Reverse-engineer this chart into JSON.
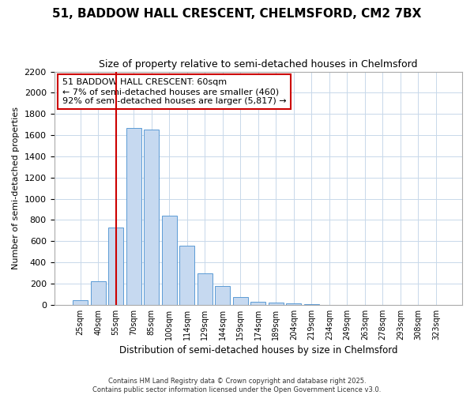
{
  "title": "51, BADDOW HALL CRESCENT, CHELMSFORD, CM2 7BX",
  "subtitle": "Size of property relative to semi-detached houses in Chelmsford",
  "xlabel": "Distribution of semi-detached houses by size in Chelmsford",
  "ylabel": "Number of semi-detached properties",
  "bar_labels": [
    "25sqm",
    "40sqm",
    "55sqm",
    "70sqm",
    "85sqm",
    "100sqm",
    "114sqm",
    "129sqm",
    "144sqm",
    "159sqm",
    "174sqm",
    "189sqm",
    "204sqm",
    "219sqm",
    "234sqm",
    "249sqm",
    "263sqm",
    "278sqm",
    "293sqm",
    "308sqm",
    "323sqm"
  ],
  "bar_values": [
    40,
    220,
    730,
    1670,
    1650,
    840,
    560,
    300,
    180,
    70,
    30,
    20,
    10,
    5,
    2,
    1,
    0,
    0,
    0,
    0,
    0
  ],
  "bar_color": "#c6d9f0",
  "bar_edge_color": "#5b9bd5",
  "ylim": [
    0,
    2200
  ],
  "yticks": [
    0,
    200,
    400,
    600,
    800,
    1000,
    1200,
    1400,
    1600,
    1800,
    2000,
    2200
  ],
  "vline_x": 2,
  "vline_color": "#cc0000",
  "annotation_title": "51 BADDOW HALL CRESCENT: 60sqm",
  "annotation_line1": "← 7% of semi-detached houses are smaller (460)",
  "annotation_line2": "92% of semi-detached houses are larger (5,817) →",
  "footer1": "Contains HM Land Registry data © Crown copyright and database right 2025.",
  "footer2": "Contains public sector information licensed under the Open Government Licence v3.0.",
  "bg_color": "#ffffff",
  "grid_color": "#c8d8ea"
}
